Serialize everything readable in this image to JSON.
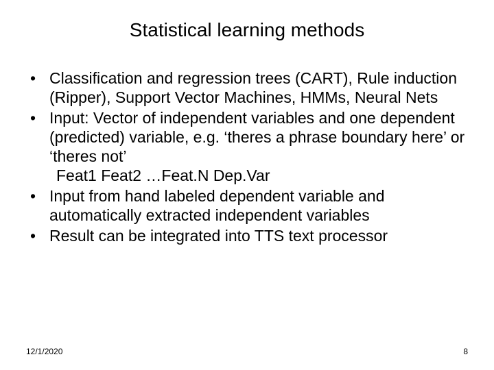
{
  "title": "Statistical learning methods",
  "bullets": [
    {
      "text": "Classification and regression trees (CART), Rule induction (Ripper), Support Vector Machines, HMMs, Neural Nets"
    },
    {
      "text": "Input: Vector of independent variables and one dependent (predicted) variable, e.g. ‘theres a phrase boundary here’ or ‘theres not’",
      "sub": "Feat1 Feat2 …Feat.N Dep.Var"
    },
    {
      "text": "Input from hand labeled dependent variable and automatically extracted independent variables"
    },
    {
      "text": "Result can be integrated into TTS text processor"
    }
  ],
  "footer": {
    "date": "12/1/2020",
    "page": "8"
  },
  "style": {
    "background_color": "#ffffff",
    "text_color": "#000000",
    "title_fontsize": 28,
    "body_fontsize": 23,
    "footer_fontsize": 12,
    "font_family": "Arial"
  }
}
